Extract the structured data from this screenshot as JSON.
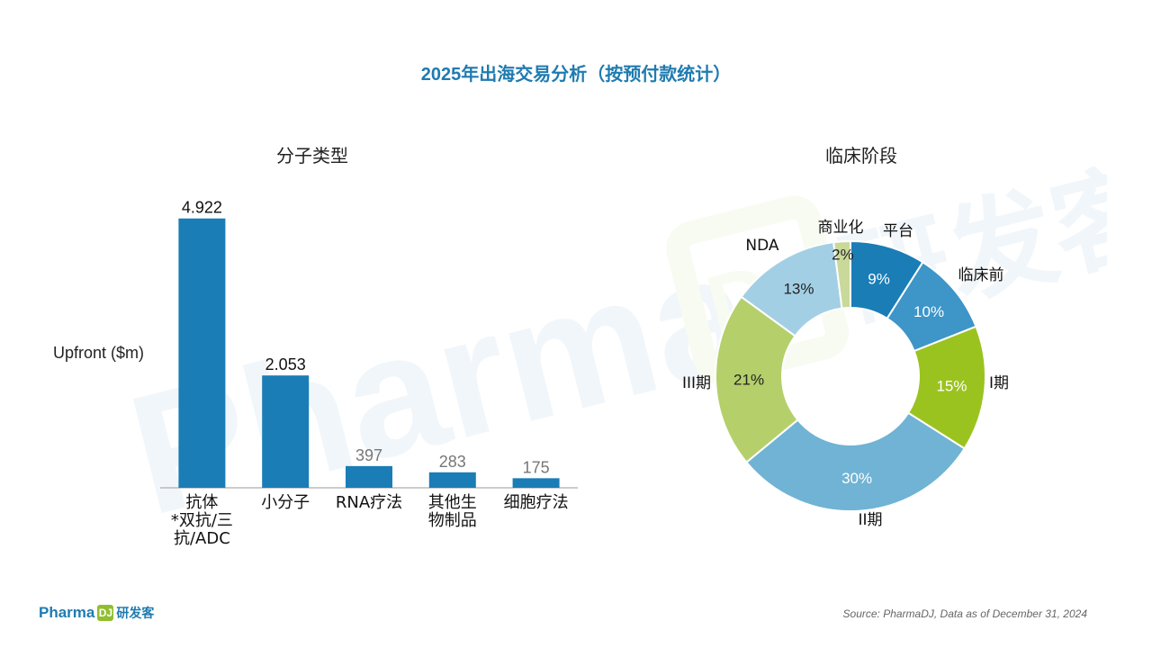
{
  "title": "2025年出海交易分析（按预付款统计）",
  "watermark": {
    "text": "Pharma",
    "box": "DJ",
    "cn": "研发客"
  },
  "footer": {
    "brand": "Pharma",
    "box": "DJ",
    "cn": "研发客",
    "source": "Source: PharmaDJ, Data as of December 31, 2024"
  },
  "chart_data": [
    {
      "type": "bar",
      "title": "分子类型",
      "ylabel": "Upfront ($m)",
      "xlabel": "",
      "categories": [
        [
          "抗体",
          "*双抗/三",
          "抗/ADC"
        ],
        [
          "小分子"
        ],
        [
          "RNA疗法"
        ],
        [
          "其他生",
          "物制品"
        ],
        [
          "细胞疗法"
        ]
      ],
      "values": [
        4922,
        2053,
        397,
        283,
        175
      ],
      "value_labels": [
        "4.922",
        "2.053",
        "397",
        "283",
        "175"
      ],
      "ylim": [
        0,
        5000
      ],
      "color": "#1a7db6",
      "grid": false
    },
    {
      "type": "pie",
      "style": "donut",
      "title": "临床阶段",
      "slices": [
        {
          "label": "平台",
          "pct_label": "9%",
          "value": 9,
          "color": "#1a7db6"
        },
        {
          "label": "临床前",
          "pct_label": "10%",
          "value": 10,
          "color": "#3d95c8"
        },
        {
          "label": "I期",
          "pct_label": "15%",
          "value": 15,
          "color": "#9bc31f"
        },
        {
          "label": "II期",
          "pct_label": "30%",
          "value": 30,
          "color": "#70b3d4"
        },
        {
          "label": "III期",
          "pct_label": "21%",
          "value": 21,
          "color": "#b5cf6b"
        },
        {
          "label": "NDA",
          "pct_label": "13%",
          "value": 13,
          "color": "#a3cfe5"
        },
        {
          "label": "商业化",
          "pct_label": "2%",
          "value": 2,
          "color": "#c9d99a"
        }
      ]
    }
  ]
}
